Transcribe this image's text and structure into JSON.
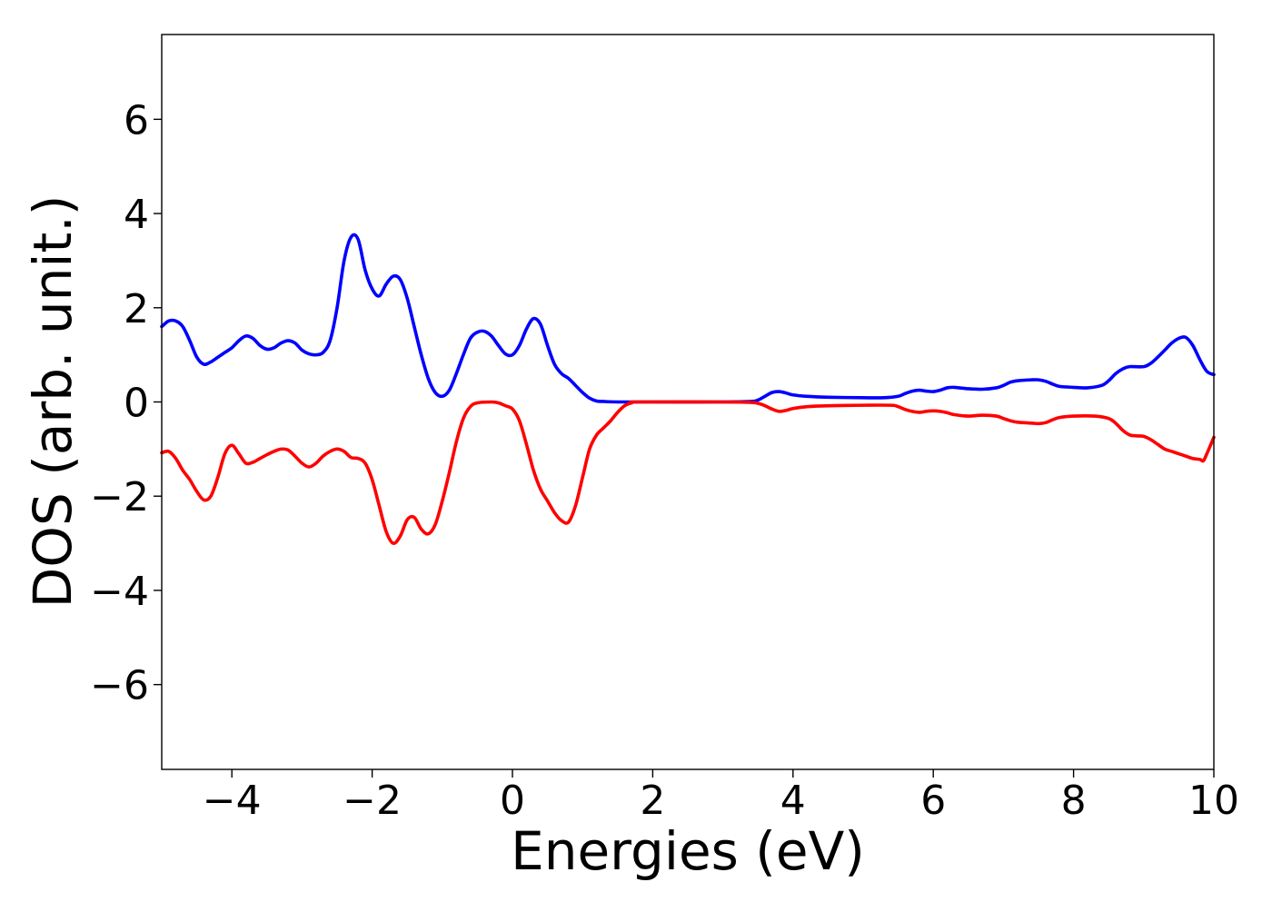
{
  "chart_data": {
    "type": "line",
    "title": "",
    "xlabel": "Energies (eV)",
    "ylabel": "DOS (arb. unit.)",
    "xlim": [
      -5,
      10
    ],
    "ylim": [
      -7.8,
      7.8
    ],
    "grid": false,
    "legend": "none",
    "x_ticks": [
      {
        "value": -4,
        "label": "−4"
      },
      {
        "value": -2,
        "label": "−2"
      },
      {
        "value": 0,
        "label": "0"
      },
      {
        "value": 2,
        "label": "2"
      },
      {
        "value": 4,
        "label": "4"
      },
      {
        "value": 6,
        "label": "6"
      },
      {
        "value": 8,
        "label": "8"
      },
      {
        "value": 10,
        "label": "10"
      }
    ],
    "y_ticks": [
      {
        "value": -6,
        "label": "−6"
      },
      {
        "value": -4,
        "label": "−4"
      },
      {
        "value": -2,
        "label": "−2"
      },
      {
        "value": 0,
        "label": "0"
      },
      {
        "value": 2,
        "label": "2"
      },
      {
        "value": 4,
        "label": "4"
      },
      {
        "value": 6,
        "label": "6"
      }
    ],
    "series": [
      {
        "color": "#0000ff",
        "points": [
          [
            -5.0,
            1.6
          ],
          [
            -4.9,
            1.72
          ],
          [
            -4.8,
            1.72
          ],
          [
            -4.7,
            1.6
          ],
          [
            -4.6,
            1.3
          ],
          [
            -4.5,
            0.95
          ],
          [
            -4.4,
            0.8
          ],
          [
            -4.3,
            0.85
          ],
          [
            -4.2,
            0.95
          ],
          [
            -4.1,
            1.05
          ],
          [
            -4.0,
            1.15
          ],
          [
            -3.9,
            1.3
          ],
          [
            -3.8,
            1.4
          ],
          [
            -3.7,
            1.35
          ],
          [
            -3.6,
            1.2
          ],
          [
            -3.5,
            1.12
          ],
          [
            -3.4,
            1.15
          ],
          [
            -3.3,
            1.25
          ],
          [
            -3.2,
            1.3
          ],
          [
            -3.1,
            1.25
          ],
          [
            -3.0,
            1.1
          ],
          [
            -2.9,
            1.02
          ],
          [
            -2.8,
            1.0
          ],
          [
            -2.7,
            1.05
          ],
          [
            -2.6,
            1.3
          ],
          [
            -2.5,
            2.0
          ],
          [
            -2.4,
            3.0
          ],
          [
            -2.3,
            3.5
          ],
          [
            -2.2,
            3.45
          ],
          [
            -2.1,
            2.8
          ],
          [
            -2.0,
            2.4
          ],
          [
            -1.9,
            2.25
          ],
          [
            -1.8,
            2.5
          ],
          [
            -1.7,
            2.67
          ],
          [
            -1.6,
            2.6
          ],
          [
            -1.5,
            2.2
          ],
          [
            -1.4,
            1.6
          ],
          [
            -1.3,
            1.0
          ],
          [
            -1.2,
            0.5
          ],
          [
            -1.1,
            0.2
          ],
          [
            -1.0,
            0.12
          ],
          [
            -0.9,
            0.25
          ],
          [
            -0.8,
            0.6
          ],
          [
            -0.7,
            1.0
          ],
          [
            -0.6,
            1.35
          ],
          [
            -0.5,
            1.48
          ],
          [
            -0.4,
            1.5
          ],
          [
            -0.3,
            1.4
          ],
          [
            -0.2,
            1.2
          ],
          [
            -0.1,
            1.02
          ],
          [
            0.0,
            1.0
          ],
          [
            0.1,
            1.2
          ],
          [
            0.2,
            1.55
          ],
          [
            0.3,
            1.77
          ],
          [
            0.4,
            1.65
          ],
          [
            0.5,
            1.2
          ],
          [
            0.6,
            0.8
          ],
          [
            0.7,
            0.6
          ],
          [
            0.8,
            0.5
          ],
          [
            0.9,
            0.35
          ],
          [
            1.0,
            0.2
          ],
          [
            1.1,
            0.08
          ],
          [
            1.2,
            0.02
          ],
          [
            1.3,
            0.01
          ],
          [
            1.5,
            0.0
          ],
          [
            2.0,
            0.0
          ],
          [
            3.0,
            0.0
          ],
          [
            3.4,
            0.01
          ],
          [
            3.5,
            0.04
          ],
          [
            3.6,
            0.12
          ],
          [
            3.7,
            0.2
          ],
          [
            3.8,
            0.22
          ],
          [
            3.9,
            0.19
          ],
          [
            4.0,
            0.15
          ],
          [
            4.2,
            0.12
          ],
          [
            4.5,
            0.1
          ],
          [
            5.0,
            0.09
          ],
          [
            5.3,
            0.09
          ],
          [
            5.5,
            0.12
          ],
          [
            5.6,
            0.18
          ],
          [
            5.7,
            0.23
          ],
          [
            5.8,
            0.25
          ],
          [
            5.9,
            0.23
          ],
          [
            6.0,
            0.22
          ],
          [
            6.1,
            0.25
          ],
          [
            6.2,
            0.3
          ],
          [
            6.3,
            0.31
          ],
          [
            6.5,
            0.28
          ],
          [
            6.7,
            0.27
          ],
          [
            6.9,
            0.3
          ],
          [
            7.0,
            0.35
          ],
          [
            7.1,
            0.42
          ],
          [
            7.2,
            0.45
          ],
          [
            7.4,
            0.47
          ],
          [
            7.5,
            0.47
          ],
          [
            7.6,
            0.44
          ],
          [
            7.7,
            0.38
          ],
          [
            7.8,
            0.33
          ],
          [
            8.0,
            0.31
          ],
          [
            8.2,
            0.3
          ],
          [
            8.4,
            0.35
          ],
          [
            8.5,
            0.45
          ],
          [
            8.6,
            0.6
          ],
          [
            8.7,
            0.7
          ],
          [
            8.8,
            0.75
          ],
          [
            9.0,
            0.75
          ],
          [
            9.1,
            0.82
          ],
          [
            9.2,
            0.95
          ],
          [
            9.3,
            1.1
          ],
          [
            9.4,
            1.25
          ],
          [
            9.5,
            1.35
          ],
          [
            9.6,
            1.37
          ],
          [
            9.7,
            1.2
          ],
          [
            9.8,
            0.9
          ],
          [
            9.9,
            0.65
          ],
          [
            10.0,
            0.58
          ]
        ]
      },
      {
        "color": "#ff0000",
        "points": [
          [
            -5.0,
            -1.08
          ],
          [
            -4.9,
            -1.05
          ],
          [
            -4.8,
            -1.2
          ],
          [
            -4.7,
            -1.45
          ],
          [
            -4.6,
            -1.65
          ],
          [
            -4.5,
            -1.9
          ],
          [
            -4.4,
            -2.08
          ],
          [
            -4.3,
            -2.0
          ],
          [
            -4.2,
            -1.6
          ],
          [
            -4.1,
            -1.1
          ],
          [
            -4.0,
            -0.92
          ],
          [
            -3.9,
            -1.1
          ],
          [
            -3.8,
            -1.3
          ],
          [
            -3.7,
            -1.28
          ],
          [
            -3.6,
            -1.2
          ],
          [
            -3.5,
            -1.12
          ],
          [
            -3.4,
            -1.05
          ],
          [
            -3.3,
            -1.0
          ],
          [
            -3.2,
            -1.02
          ],
          [
            -3.1,
            -1.15
          ],
          [
            -3.0,
            -1.3
          ],
          [
            -2.9,
            -1.38
          ],
          [
            -2.8,
            -1.3
          ],
          [
            -2.7,
            -1.15
          ],
          [
            -2.6,
            -1.05
          ],
          [
            -2.5,
            -1.0
          ],
          [
            -2.4,
            -1.05
          ],
          [
            -2.3,
            -1.18
          ],
          [
            -2.2,
            -1.2
          ],
          [
            -2.1,
            -1.3
          ],
          [
            -2.0,
            -1.65
          ],
          [
            -1.9,
            -2.2
          ],
          [
            -1.8,
            -2.75
          ],
          [
            -1.7,
            -3.0
          ],
          [
            -1.6,
            -2.85
          ],
          [
            -1.5,
            -2.5
          ],
          [
            -1.4,
            -2.45
          ],
          [
            -1.3,
            -2.7
          ],
          [
            -1.2,
            -2.8
          ],
          [
            -1.1,
            -2.6
          ],
          [
            -1.0,
            -2.1
          ],
          [
            -0.9,
            -1.5
          ],
          [
            -0.8,
            -0.85
          ],
          [
            -0.7,
            -0.35
          ],
          [
            -0.6,
            -0.1
          ],
          [
            -0.5,
            -0.02
          ],
          [
            -0.3,
            0.0
          ],
          [
            -0.2,
            -0.02
          ],
          [
            -0.1,
            -0.08
          ],
          [
            0.0,
            -0.15
          ],
          [
            0.1,
            -0.4
          ],
          [
            0.2,
            -0.9
          ],
          [
            0.3,
            -1.45
          ],
          [
            0.4,
            -1.85
          ],
          [
            0.5,
            -2.1
          ],
          [
            0.6,
            -2.35
          ],
          [
            0.7,
            -2.52
          ],
          [
            0.8,
            -2.55
          ],
          [
            0.9,
            -2.2
          ],
          [
            1.0,
            -1.6
          ],
          [
            1.1,
            -1.0
          ],
          [
            1.2,
            -0.7
          ],
          [
            1.3,
            -0.55
          ],
          [
            1.4,
            -0.4
          ],
          [
            1.5,
            -0.22
          ],
          [
            1.6,
            -0.08
          ],
          [
            1.7,
            -0.02
          ],
          [
            1.8,
            0.0
          ],
          [
            3.0,
            0.0
          ],
          [
            3.4,
            -0.01
          ],
          [
            3.5,
            -0.03
          ],
          [
            3.6,
            -0.08
          ],
          [
            3.7,
            -0.15
          ],
          [
            3.8,
            -0.2
          ],
          [
            3.9,
            -0.18
          ],
          [
            4.0,
            -0.14
          ],
          [
            4.2,
            -0.1
          ],
          [
            4.5,
            -0.08
          ],
          [
            5.0,
            -0.07
          ],
          [
            5.4,
            -0.07
          ],
          [
            5.5,
            -0.1
          ],
          [
            5.6,
            -0.16
          ],
          [
            5.7,
            -0.2
          ],
          [
            5.8,
            -0.22
          ],
          [
            5.9,
            -0.2
          ],
          [
            6.0,
            -0.19
          ],
          [
            6.1,
            -0.2
          ],
          [
            6.2,
            -0.23
          ],
          [
            6.3,
            -0.27
          ],
          [
            6.5,
            -0.3
          ],
          [
            6.7,
            -0.28
          ],
          [
            6.9,
            -0.3
          ],
          [
            7.0,
            -0.35
          ],
          [
            7.1,
            -0.4
          ],
          [
            7.2,
            -0.43
          ],
          [
            7.4,
            -0.45
          ],
          [
            7.5,
            -0.46
          ],
          [
            7.6,
            -0.44
          ],
          [
            7.7,
            -0.38
          ],
          [
            7.8,
            -0.33
          ],
          [
            8.0,
            -0.3
          ],
          [
            8.3,
            -0.3
          ],
          [
            8.5,
            -0.35
          ],
          [
            8.6,
            -0.45
          ],
          [
            8.7,
            -0.6
          ],
          [
            8.8,
            -0.7
          ],
          [
            8.9,
            -0.72
          ],
          [
            9.0,
            -0.73
          ],
          [
            9.1,
            -0.8
          ],
          [
            9.2,
            -0.9
          ],
          [
            9.3,
            -1.0
          ],
          [
            9.4,
            -1.05
          ],
          [
            9.5,
            -1.1
          ],
          [
            9.6,
            -1.15
          ],
          [
            9.7,
            -1.2
          ],
          [
            9.8,
            -1.22
          ],
          [
            9.85,
            -1.25
          ],
          [
            9.9,
            -1.1
          ],
          [
            10.0,
            -0.75
          ]
        ]
      }
    ]
  }
}
